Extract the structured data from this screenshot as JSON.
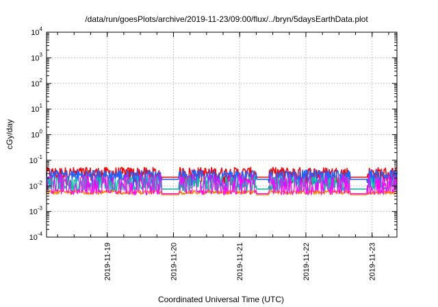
{
  "chart_data": {
    "type": "line",
    "title": "/data/run/goesPlots/archive/2019-11-23/09:00/flux/../bryn/5daysEarthData.plot",
    "xlabel": "Coordinated Universal Time (UTC)",
    "ylabel": "cGy/day",
    "yscale": "log",
    "ylim_exponents": [
      -4,
      4
    ],
    "y_tick_base": "10",
    "y_tick_exponents": [
      "-4",
      "-3",
      "-2",
      "-1",
      "0",
      "1",
      "2",
      "3",
      "4"
    ],
    "x_range_days": [
      "2019-11-18 02:00",
      "2019-11-23 09:00"
    ],
    "x_ticks": [
      "2019-11-19",
      "2019-11-20",
      "2019-11-21",
      "2019-11-22",
      "2019-11-23"
    ],
    "grid": true,
    "legend": "none",
    "series": [
      {
        "color": "#ff0000",
        "base": 0.03,
        "amplitude": 0.35,
        "gap_level": 0.022,
        "kind": "upper"
      },
      {
        "color": "#1e64ff",
        "base": 0.024,
        "amplitude": 0.35,
        "gap_level": 0.018,
        "kind": "upper"
      },
      {
        "color": "#00c8a0",
        "base": 0.012,
        "amplitude": 0.4,
        "gap_level": 0.0075,
        "kind": "mid"
      },
      {
        "color": "#ff8000",
        "base": 0.0055,
        "amplitude": 0.15,
        "gap_level": 0.0045,
        "kind": "low"
      },
      {
        "color": "#ff00ff",
        "base": 0.0055,
        "amplitude": 0.2,
        "gap_level": 0.005,
        "kind": "spiky"
      }
    ],
    "data_gaps_days": [
      [
        1.74,
        2.0
      ],
      [
        3.17,
        3.35
      ],
      [
        4.58,
        4.84
      ]
    ]
  }
}
